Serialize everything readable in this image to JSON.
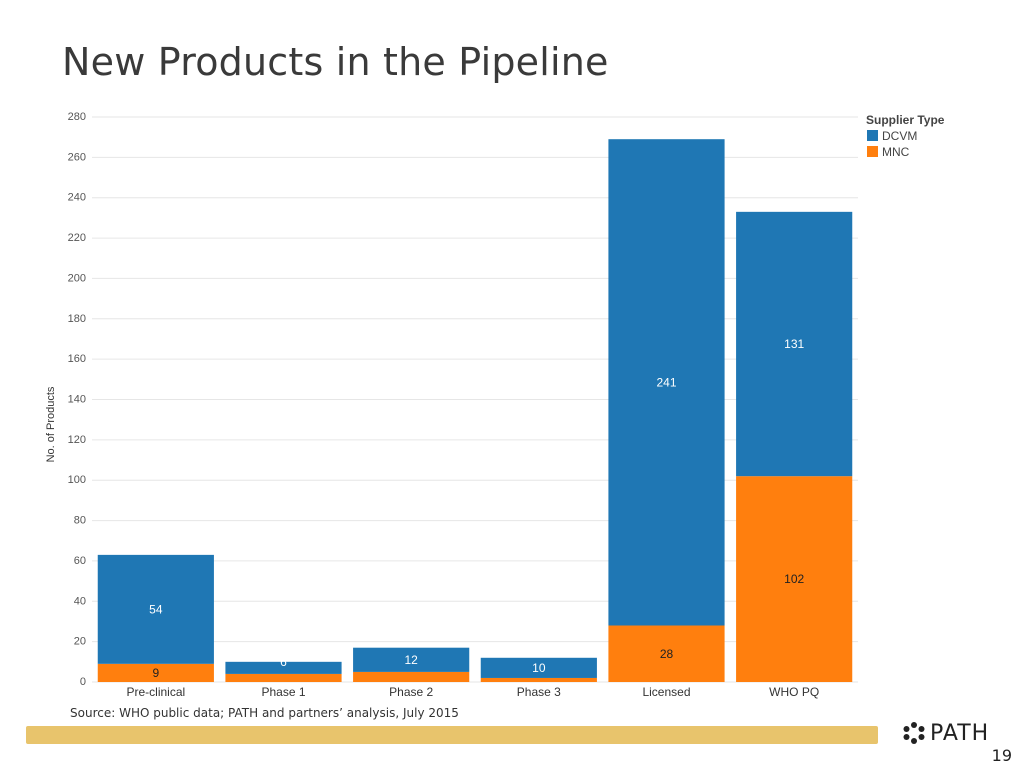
{
  "slide": {
    "title": "New Products in the Pipeline",
    "source": "Source: WHO public data; PATH and partners’ analysis, July 2015",
    "logo_text": "PATH",
    "page_number": "19"
  },
  "chart_data": {
    "type": "bar",
    "stacked": true,
    "categories": [
      "Pre-clinical",
      "Phase 1",
      "Phase 2",
      "Phase 3",
      "Licensed",
      "WHO PQ"
    ],
    "series": [
      {
        "name": "MNC",
        "color": "#ff7f0e",
        "values": [
          9,
          4,
          5,
          2,
          28,
          102
        ],
        "labels": [
          "9",
          "",
          "",
          "",
          "28",
          "102"
        ]
      },
      {
        "name": "DCVM",
        "color": "#1f77b4",
        "values": [
          54,
          6,
          12,
          10,
          241,
          131
        ],
        "labels": [
          "54",
          "6",
          "12",
          "10",
          "241",
          "131"
        ]
      }
    ],
    "ylabel": "No. of Products",
    "xlabel": "",
    "ylim": [
      0,
      280
    ],
    "yticks": [
      0,
      20,
      40,
      60,
      80,
      100,
      120,
      140,
      160,
      180,
      200,
      220,
      240,
      260,
      280
    ],
    "grid": true,
    "legend": {
      "title": "Supplier Type",
      "position": "top-right",
      "items": [
        "DCVM",
        "MNC"
      ]
    }
  }
}
